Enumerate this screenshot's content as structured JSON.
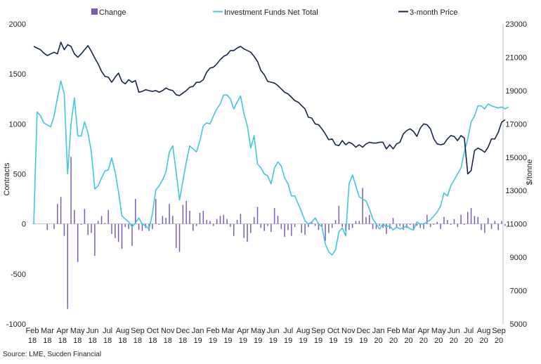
{
  "chart_data": {
    "type": "bar+line",
    "title": "",
    "source": "Source: LME, Sucden Financial",
    "ylabel_left": "Contracts",
    "ylabel_right": "$/tonne",
    "ylim_left": [
      -1000,
      2000
    ],
    "ylim_right": [
      5000,
      23000
    ],
    "yticks_left": [
      "2000",
      "1500",
      "1000",
      "500",
      "0",
      "-500",
      "-1000"
    ],
    "yticks_right": [
      "23000",
      "21000",
      "19000",
      "17000",
      "15000",
      "13000",
      "11000",
      "9000",
      "7000",
      "5000"
    ],
    "x_labels": [
      {
        "m": "Feb",
        "y": "18"
      },
      {
        "m": "Mar",
        "y": "18"
      },
      {
        "m": "Apr",
        "y": "18"
      },
      {
        "m": "May",
        "y": "18"
      },
      {
        "m": "Jun",
        "y": "18"
      },
      {
        "m": "Jul",
        "y": "18"
      },
      {
        "m": "Aug",
        "y": "18"
      },
      {
        "m": "Sep",
        "y": "18"
      },
      {
        "m": "Oct",
        "y": "18"
      },
      {
        "m": "Nov",
        "y": "18"
      },
      {
        "m": "Dec",
        "y": "18"
      },
      {
        "m": "Jan",
        "y": "19"
      },
      {
        "m": "Feb",
        "y": "19"
      },
      {
        "m": "Mar",
        "y": "19"
      },
      {
        "m": "Apr",
        "y": "19"
      },
      {
        "m": "May",
        "y": "19"
      },
      {
        "m": "Jun",
        "y": "19"
      },
      {
        "m": "Jul",
        "y": "19"
      },
      {
        "m": "Aug",
        "y": "19"
      },
      {
        "m": "Sep",
        "y": "19"
      },
      {
        "m": "Oct",
        "y": "19"
      },
      {
        "m": "Nov",
        "y": "19"
      },
      {
        "m": "Dec",
        "y": "19"
      },
      {
        "m": "Jan",
        "y": "20"
      },
      {
        "m": "Feb",
        "y": "20"
      },
      {
        "m": "Mar",
        "y": "20"
      },
      {
        "m": "Apr",
        "y": "20"
      },
      {
        "m": "May",
        "y": "20"
      },
      {
        "m": "Jun",
        "y": "20"
      },
      {
        "m": "Jul",
        "y": "20"
      },
      {
        "m": "Aug",
        "y": "20"
      },
      {
        "m": "Sep",
        "y": "20"
      }
    ],
    "legend": {
      "change": "Change",
      "funds": "Investment Funds Net Total",
      "price": "3-month Price"
    },
    "colors": {
      "change": "#7a5cb8",
      "funds": "#3fc6e0",
      "price": "#14254a"
    },
    "weeks": 139,
    "series": [
      {
        "name": "Investment Funds Net Total",
        "axis": "left",
        "type": "line",
        "values": [
          0,
          1120,
          1080,
          1010,
          990,
          970,
          1080,
          1260,
          1430,
          1300,
          500,
          1000,
          1260,
          880,
          880,
          1020,
          910,
          720,
          350,
          380,
          460,
          530,
          540,
          660,
          520,
          320,
          80,
          50,
          20,
          -30,
          10,
          60,
          0,
          -20,
          -50,
          100,
          340,
          380,
          440,
          520,
          720,
          780,
          520,
          240,
          430,
          620,
          780,
          750,
          720,
          830,
          980,
          1010,
          1000,
          1080,
          1150,
          1200,
          1290,
          1290,
          1250,
          1150,
          1220,
          1280,
          1100,
          980,
          760,
          880,
          600,
          560,
          500,
          480,
          400,
          560,
          620,
          580,
          460,
          400,
          280,
          280,
          200,
          120,
          30,
          0,
          20,
          60,
          0,
          -30,
          -200,
          -280,
          -310,
          -260,
          -80,
          -40,
          -120,
          400,
          490,
          380,
          270,
          250,
          230,
          150,
          50,
          0,
          -50,
          0,
          -30,
          -20,
          -60,
          -30,
          -50,
          -40,
          -20,
          -50,
          -60,
          20,
          0,
          0,
          20,
          40,
          80,
          120,
          180,
          310,
          280,
          380,
          440,
          500,
          560,
          720,
          850,
          1020,
          1080,
          1180,
          1180,
          1150,
          1200,
          1180,
          1170,
          1160,
          1170,
          1150,
          1170
        ]
      },
      {
        "name": "3-month Price",
        "axis": "right",
        "type": "line",
        "values": [
          21650,
          21550,
          21450,
          21250,
          21100,
          21200,
          21300,
          21200,
          21900,
          21450,
          21750,
          21650,
          21200,
          21000,
          21200,
          21450,
          21700,
          21350,
          20950,
          20600,
          20150,
          19850,
          19800,
          19500,
          19800,
          20050,
          19550,
          19400,
          19650,
          19500,
          19600,
          18900,
          18950,
          19050,
          19000,
          18950,
          19000,
          18900,
          19000,
          19150,
          19050,
          19000,
          18750,
          18700,
          18850,
          19000,
          19200,
          19250,
          19500,
          19500,
          19650,
          20100,
          20350,
          20400,
          20600,
          20850,
          21050,
          21150,
          21400,
          21400,
          21550,
          21650,
          21500,
          21400,
          21300,
          21050,
          20750,
          20200,
          19950,
          19550,
          19500,
          19450,
          19300,
          19100,
          18900,
          18800,
          18600,
          18400,
          18300,
          18100,
          17900,
          17400,
          17350,
          17000,
          16950,
          16700,
          16400,
          16050,
          16100,
          15750,
          15700,
          16000,
          15750,
          15900,
          15800,
          15600,
          15750,
          15600,
          15800,
          15900,
          15850,
          15850,
          15900,
          15900,
          15500,
          15750,
          15500,
          15800,
          15900,
          16400,
          16600,
          16700,
          16550,
          16250,
          16750,
          17000,
          16950,
          16700,
          16100,
          15800,
          15750,
          15800,
          16100,
          16300,
          16250,
          16000,
          16300,
          16150,
          14000,
          14200,
          15400,
          15550,
          15450,
          15300,
          15600,
          16100,
          16100,
          16500,
          17100,
          17250
        ]
      },
      {
        "name": "Change",
        "axis": "left",
        "type": "bar",
        "values": [
          0,
          0,
          0,
          0,
          -60,
          0,
          -50,
          200,
          270,
          -120,
          -850,
          670,
          140,
          -380,
          -10,
          150,
          -110,
          -90,
          -320,
          30,
          80,
          10,
          140,
          -100,
          -140,
          -180,
          -250,
          -30,
          -50,
          -220,
          250,
          -60,
          -70,
          -40,
          -70,
          -50,
          250,
          -10,
          80,
          60,
          200,
          80,
          -240,
          -280,
          190,
          230,
          130,
          -70,
          -20,
          110,
          130,
          40,
          30,
          -20,
          50,
          80,
          90,
          50,
          -30,
          -120,
          40,
          100,
          -140,
          -180,
          -90,
          70,
          170,
          -40,
          -70,
          -20,
          -80,
          160,
          80,
          -50,
          -130,
          -60,
          -120,
          -30,
          0,
          -90,
          -110,
          -30,
          20,
          -20,
          -60,
          -30,
          -170,
          -90,
          -40,
          40,
          180,
          -30,
          -70,
          -60,
          -40,
          30,
          30,
          360,
          70,
          90,
          -50,
          -50,
          -20,
          -40,
          -100,
          -50,
          60,
          -40,
          -20,
          -60,
          -40,
          -10,
          -50,
          -20,
          -40,
          -50,
          90,
          -30,
          -10,
          20,
          -50,
          70,
          40,
          -10,
          50,
          -30,
          90,
          -10,
          120,
          160,
          80,
          70,
          -60,
          -90,
          60,
          -50,
          30,
          -60,
          30,
          -20,
          20
        ]
      }
    ]
  }
}
